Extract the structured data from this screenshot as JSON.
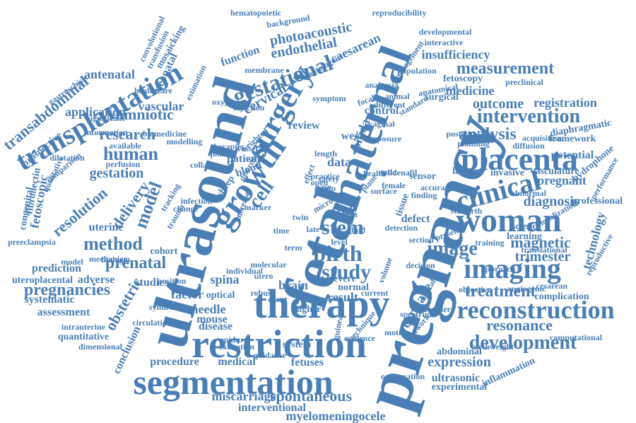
{
  "color": "#4a7fb5",
  "words": [
    "fetal",
    "pregnancy",
    "ultrasound",
    "maternal",
    "therapy",
    "restriction",
    "segmentation",
    "growth",
    "woman",
    "placenta",
    "surgery",
    "transplantation",
    "imaging",
    "clinical",
    "reconstruction",
    "gestational",
    "development",
    "intervention",
    "birth",
    "study",
    "image",
    "human",
    "method",
    "analysis",
    "measurement",
    "stem",
    "cell",
    "model",
    "prenatal",
    "pregnancies",
    "spontaneous",
    "treatment",
    "research",
    "amniotic",
    "resonance",
    "magnetic",
    "delivery",
    "transabdominal",
    "obstetric",
    "gestation",
    "resolution",
    "expression",
    "outcome",
    "cerclage",
    "myelomeningocele",
    "endothelial",
    "photoacoustic",
    "caesarean",
    "insufficiency",
    "miscarriage",
    "fetoscopic",
    "diagnosis",
    "trimester",
    "technology",
    "vascular",
    "cervical",
    "antenatal",
    "application",
    "medicine",
    "registration",
    "potential",
    "pregnant",
    "prediction",
    "spina",
    "bifida",
    "brain",
    "needle",
    "mouse",
    "disease",
    "uterine",
    "studies",
    "factor",
    "assessment",
    "systematic",
    "adverse",
    "result",
    "review",
    "risk",
    "week",
    "defect",
    "data",
    "blood",
    "patient",
    "tissue",
    "control",
    "neonatal",
    "function",
    "conclusion",
    "procedure",
    "medical",
    "fetuses",
    "ultrasonic",
    "experimental",
    "abdominal",
    "inflammation",
    "complication",
    "professional",
    "learning",
    "science",
    "quantitative",
    "intrauterine",
    "uteroplacental",
    "preeclampsia",
    "fibronectin",
    "congenital",
    "prospective",
    "interventional",
    "framework",
    "fetoscopy",
    "surgical",
    "labour",
    "invasive",
    "vasculature",
    "diaphragmatic",
    "hydrophone",
    "guidance",
    "epidural",
    "excitation",
    "system",
    "higher",
    "normal",
    "severe",
    "developmental",
    "interactive",
    "reproducibility",
    "hematopoietic",
    "background",
    "mosaicking",
    "transfusion",
    "convolutional",
    "healthcare",
    "estimation",
    "gastroschisis",
    "cohort",
    "optical",
    "position",
    "circulation",
    "dimensional",
    "computational",
    "acquisition",
    "objective",
    "angiogenic",
    "birthweight",
    "oxygenation",
    "twin",
    "trial",
    "fluid",
    "membrane",
    "management",
    "network",
    "volume",
    "collagen",
    "significant",
    "information",
    "available",
    "modelling",
    "perfusion",
    "dilatation",
    "comparison",
    "qualitative",
    "biomedicine",
    "translational",
    "reproductive",
    "performance",
    "diffusion",
    "sildenafil",
    "finding",
    "population",
    "anatomical",
    "preclinical",
    "postnatal",
    "planning",
    "sensor",
    "section",
    "training",
    "abnormal",
    "localization",
    "stillbirth",
    "marker",
    "injection",
    "vaginal",
    "different",
    "exposure",
    "symptom",
    "autologous",
    "sheep",
    "safety",
    "accuracy",
    "micro",
    "term",
    "length",
    "group",
    "case",
    "effect",
    "late",
    "level",
    "time",
    "open",
    "utero",
    "current",
    "motion",
    "doppler",
    "decision",
    "guinea",
    "technique",
    "evidence",
    "spectrum",
    "presence",
    "analgesia",
    "animal",
    "standard",
    "approach",
    "detection",
    "practice",
    "female",
    "surface",
    "plane",
    "optic",
    "health",
    "sperm",
    "focal",
    "model",
    "syndrome",
    "mechanism",
    "individual",
    "molecular",
    "robust",
    "event",
    "trauma",
    "change",
    "tracking",
    "oxygen",
    "infection",
    "therapies",
    "quality",
    "biology",
    "increase",
    "weighted",
    "vessel",
    "disorder",
    "cesarean",
    "neural",
    "electronic",
    "morbidity"
  ]
}
